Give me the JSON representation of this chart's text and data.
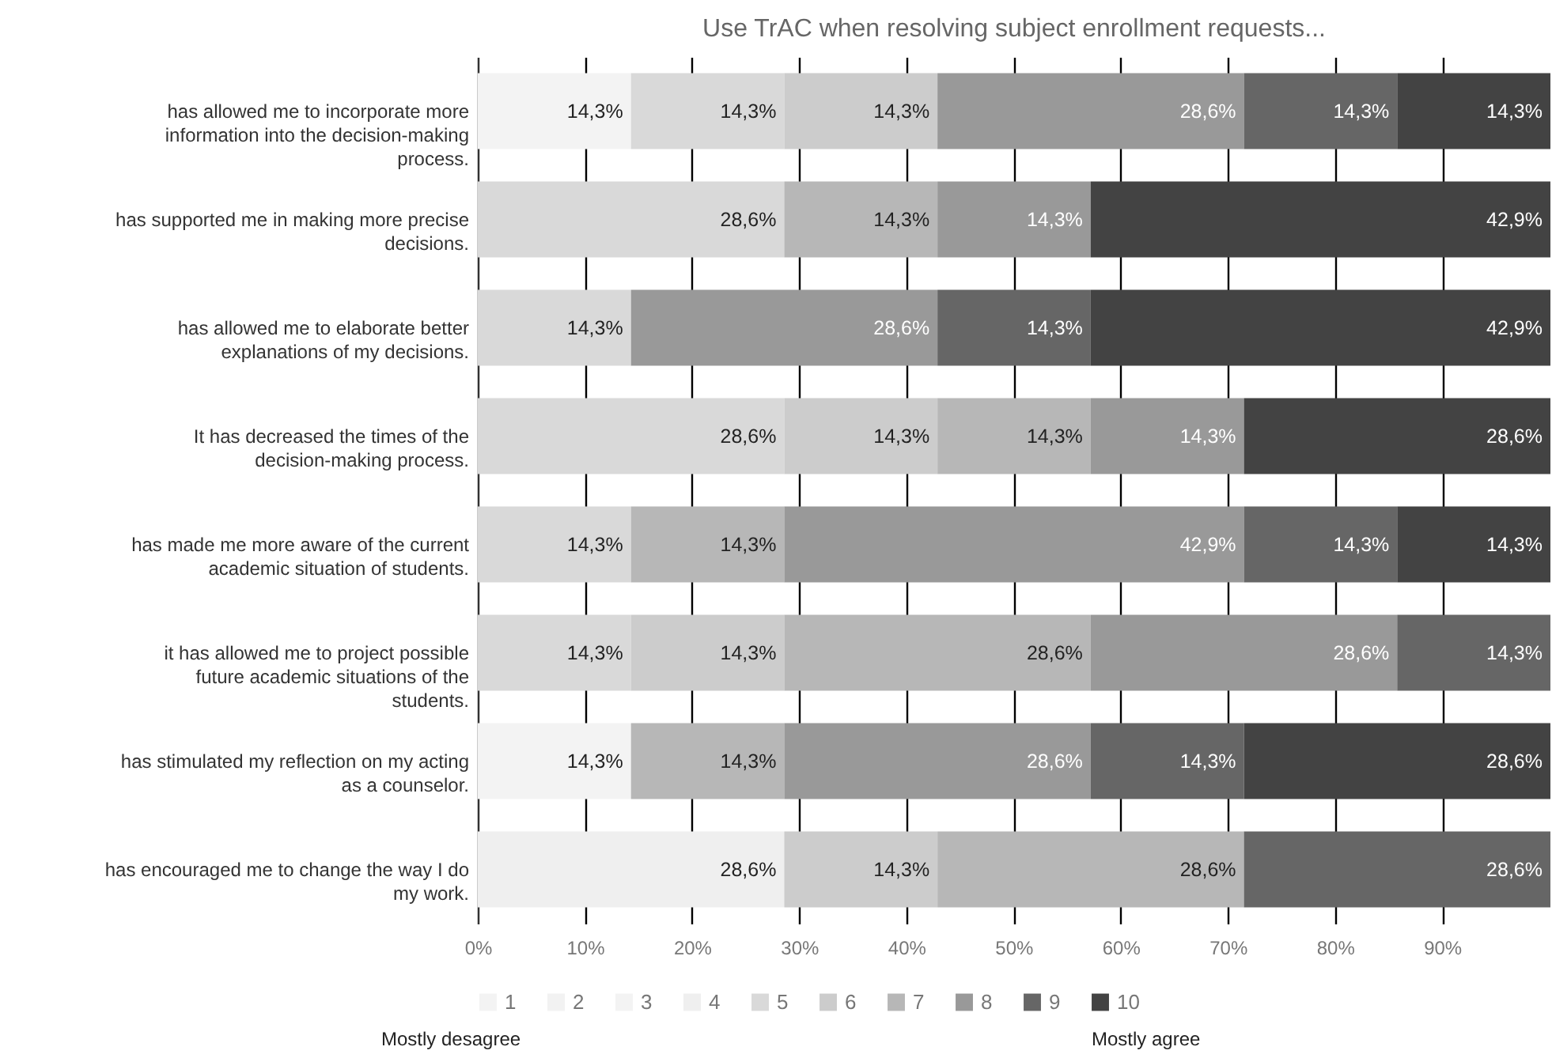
{
  "chart_data": {
    "type": "bar",
    "orientation": "horizontal",
    "stacked": true,
    "title": "Use TrAC when resolving subject enrollment requests...",
    "categories": [
      "has allowed me to incorporate more information into the decision-making process.",
      "has supported me in making more precise decisions.",
      "has allowed me to elaborate better explanations of my decisions.",
      "It has decreased the times of the decision-making process.",
      "has made me more aware of the current academic situation of students.",
      "it has allowed me to project possible future academic situations of the students.",
      "has stimulated my reflection on my acting as a counselor.",
      "has encouraged me to change the way I do my work."
    ],
    "series": [
      {
        "name": "1",
        "color": "#f3f3f3",
        "values": [
          null,
          null,
          null,
          null,
          null,
          null,
          null,
          null
        ],
        "value_labels": [
          null,
          null,
          null,
          null,
          null,
          null,
          null,
          null
        ]
      },
      {
        "name": "2",
        "color": "#f2f2f2",
        "values": [
          null,
          null,
          null,
          null,
          null,
          null,
          null,
          null
        ],
        "value_labels": [
          null,
          null,
          null,
          null,
          null,
          null,
          null,
          null
        ]
      },
      {
        "name": "3",
        "color": "#f3f3f3",
        "values": [
          14.3,
          null,
          null,
          null,
          null,
          null,
          14.3,
          null
        ],
        "value_labels": [
          "14,3%",
          null,
          null,
          null,
          null,
          null,
          "14,3%",
          null
        ]
      },
      {
        "name": "4",
        "color": "#efefef",
        "values": [
          null,
          null,
          null,
          null,
          null,
          null,
          null,
          28.6
        ],
        "value_labels": [
          null,
          null,
          null,
          null,
          null,
          null,
          null,
          "28,6%"
        ]
      },
      {
        "name": "5",
        "color": "#d9d9d9",
        "values": [
          14.3,
          28.6,
          14.3,
          28.6,
          14.3,
          14.3,
          null,
          null
        ],
        "value_labels": [
          "14,3%",
          "28,6%",
          "14,3%",
          "28,6%",
          "14,3%",
          "14,3%",
          null,
          null
        ]
      },
      {
        "name": "6",
        "color": "#cccccc",
        "values": [
          14.3,
          null,
          null,
          14.3,
          null,
          14.3,
          null,
          14.3
        ],
        "value_labels": [
          "14,3%",
          null,
          null,
          "14,3%",
          null,
          "14,3%",
          null,
          "14,3%"
        ]
      },
      {
        "name": "7",
        "color": "#b7b7b7",
        "values": [
          null,
          14.3,
          null,
          14.3,
          14.3,
          28.6,
          14.3,
          28.6
        ],
        "value_labels": [
          null,
          "14,3%",
          null,
          "14,3%",
          "14,3%",
          "28,6%",
          "14,3%",
          "28,6%"
        ]
      },
      {
        "name": "8",
        "color": "#999999",
        "values": [
          28.6,
          14.3,
          28.6,
          14.3,
          42.9,
          28.6,
          28.6,
          null
        ],
        "value_labels": [
          "28,6%",
          "14,3%",
          "28,6%",
          "14,3%",
          "42,9%",
          "28,6%",
          "28,6%",
          null
        ]
      },
      {
        "name": "9",
        "color": "#666666",
        "values": [
          14.3,
          null,
          14.3,
          null,
          14.3,
          14.3,
          14.3,
          28.6
        ],
        "value_labels": [
          "14,3%",
          null,
          "14,3%",
          null,
          "14,3%",
          "14,3%",
          "14,3%",
          "28,6%"
        ]
      },
      {
        "name": "10",
        "color": "#434343",
        "values": [
          14.3,
          42.9,
          42.9,
          28.6,
          14.3,
          null,
          28.6,
          null
        ],
        "value_labels": [
          "14,3%",
          "42,9%",
          "42,9%",
          "28,6%",
          "14,3%",
          null,
          "28,6%",
          null
        ]
      }
    ],
    "xlim": [
      0,
      100.1
    ],
    "xticks": [
      {
        "value": 0,
        "label": "0%"
      },
      {
        "value": 10,
        "label": "10%"
      },
      {
        "value": 20,
        "label": "20%"
      },
      {
        "value": 30,
        "label": "30%"
      },
      {
        "value": 40,
        "label": "40%"
      },
      {
        "value": 50,
        "label": "50%"
      },
      {
        "value": 60,
        "label": "60%"
      },
      {
        "value": 70,
        "label": "70%"
      },
      {
        "value": 80,
        "label": "80%"
      },
      {
        "value": 90,
        "label": "90%"
      }
    ],
    "grid": "x",
    "legend": "bottom",
    "annotations": [
      "Mostly desagree",
      "Mostly agree"
    ]
  }
}
